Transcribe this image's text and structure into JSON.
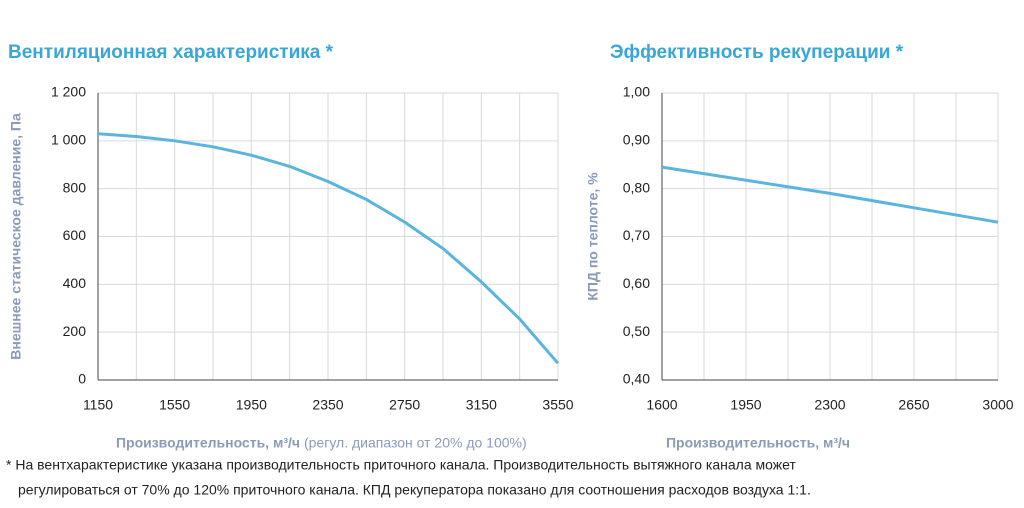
{
  "chart_data": [
    {
      "type": "line",
      "title": "Вентиляционная характеристика *",
      "x_label": "Производительность, м³/ч",
      "x_note": "(регул. диапазон от 20% до 100%)",
      "y_label": "Внешнее статическое давление, Па",
      "x": [
        1150,
        1350,
        1550,
        1750,
        1950,
        2150,
        2350,
        2550,
        2750,
        2950,
        3150,
        3350,
        3550
      ],
      "values": [
        1030,
        1018,
        1000,
        975,
        940,
        893,
        830,
        755,
        660,
        550,
        410,
        255,
        70
      ],
      "color": "#5ab4dd",
      "xlim": [
        1150,
        3550
      ],
      "xticks": [
        1150,
        1550,
        1950,
        2350,
        2750,
        3150,
        3550
      ],
      "minor_xticks": [
        1350,
        1750,
        2150,
        2550,
        2950,
        3350
      ],
      "ylim": [
        0,
        1200
      ],
      "yticks": [
        0,
        200,
        400,
        600,
        800,
        {
          "value": 1000,
          "label": "1 000"
        },
        {
          "value": 1200,
          "label": "1 200"
        }
      ],
      "grid": true
    },
    {
      "type": "line",
      "title": "Эффективность рекуперации *",
      "x_label": "Производительность, м³/ч",
      "y_label": "КПД по теплоте, %",
      "x": [
        1600,
        2300,
        3000
      ],
      "values": [
        0.845,
        0.79,
        0.73
      ],
      "color": "#5ab4dd",
      "xlim": [
        1600,
        3000
      ],
      "xticks": [
        1600,
        1950,
        2300,
        2650,
        3000
      ],
      "minor_xticks": [
        1775,
        2125,
        2475,
        2825
      ],
      "ylim": [
        0.4,
        1.0
      ],
      "yticks": [
        {
          "value": 0.4,
          "label": "0,40"
        },
        {
          "value": 0.5,
          "label": "0,50"
        },
        {
          "value": 0.6,
          "label": "0,60"
        },
        {
          "value": 0.7,
          "label": "0,70"
        },
        {
          "value": 0.8,
          "label": "0,80"
        },
        {
          "value": 0.9,
          "label": "0,90"
        },
        {
          "value": 1.0,
          "label": "1,00"
        }
      ],
      "grid": true
    }
  ],
  "footnote": [
    "* На вентхарактеристике указана производительность приточного канала. Производительность вытяжного канала может",
    "регулироваться от 70% до 120% приточного канала. КПД рекуператора показано для соотношения расходов воздуха 1:1."
  ]
}
